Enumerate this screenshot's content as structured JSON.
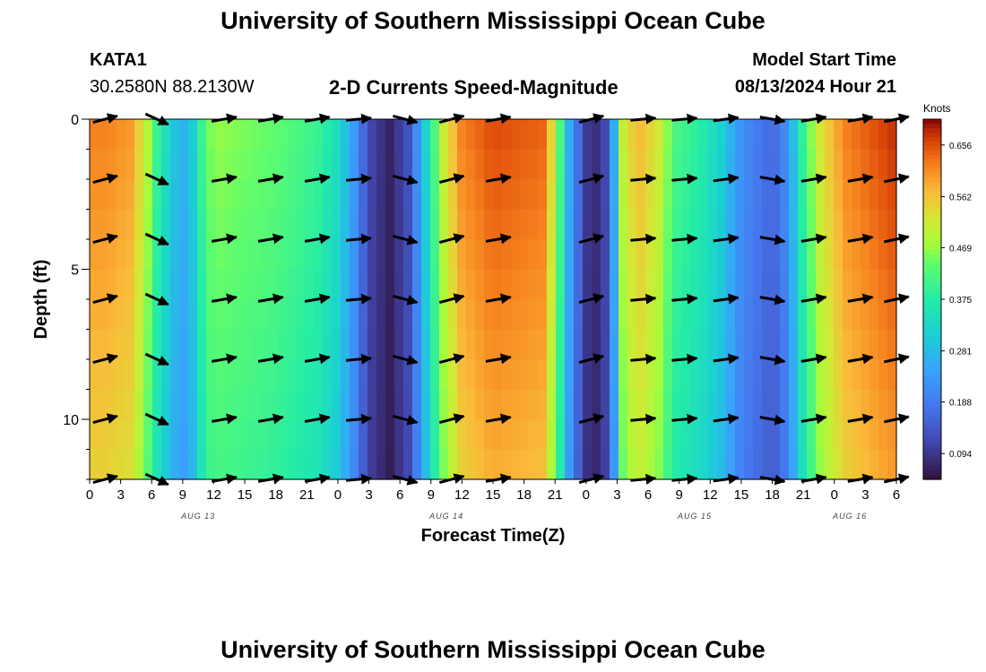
{
  "header": {
    "title": "University of Southern Mississippi Ocean Cube",
    "station_id": "KATA1",
    "coords": "30.2580N  88.2130W",
    "plot_title": "2-D Currents Speed-Magnitude",
    "model_start_label": "Model Start Time",
    "model_start_value": "08/13/2024 Hour 21"
  },
  "footer": {
    "title": "University of Southern Mississippi Ocean Cube"
  },
  "chart_data": {
    "type": "heatmap",
    "title": "2-D Currents Speed-Magnitude",
    "xlabel": "Forecast Time(Z)",
    "ylabel": "Depth (ft)",
    "ylim": [
      0,
      12
    ],
    "x_hours": [
      0,
      78
    ],
    "x_tick_labels": [
      "0",
      "3",
      "6",
      "9",
      "12",
      "15",
      "18",
      "21",
      "0",
      "3",
      "6",
      "9",
      "12",
      "15",
      "18",
      "21",
      "0",
      "3",
      "6",
      "9",
      "12",
      "15",
      "18",
      "21",
      "0",
      "3",
      "6"
    ],
    "day_labels": [
      {
        "label": "AUG 13",
        "hour": 10.5
      },
      {
        "label": "AUG 14",
        "hour": 34.5
      },
      {
        "label": "AUG 15",
        "hour": 58.5
      },
      {
        "label": "AUG 16",
        "hour": 73.5
      }
    ],
    "y_tick_labels": [
      {
        "label": "0",
        "depth": 0
      },
      {
        "label": "5",
        "depth": 5
      },
      {
        "label": "10",
        "depth": 10
      }
    ],
    "colorbar": {
      "unit": "Knots",
      "min": 0.047,
      "max": 0.703,
      "ticks": [
        "0.656",
        "0.562",
        "0.469",
        "0.375",
        "0.281",
        "0.188",
        "0.094"
      ]
    },
    "speed_profile_by_hour": [
      {
        "h": 0,
        "v": 0.62
      },
      {
        "h": 1.5,
        "v": 0.62
      },
      {
        "h": 4,
        "v": 0.6
      },
      {
        "h": 5.5,
        "v": 0.5
      },
      {
        "h": 6.5,
        "v": 0.4
      },
      {
        "h": 8,
        "v": 0.3
      },
      {
        "h": 9.5,
        "v": 0.26
      },
      {
        "h": 11,
        "v": 0.42
      },
      {
        "h": 12,
        "v": 0.47
      },
      {
        "h": 18,
        "v": 0.44
      },
      {
        "h": 22,
        "v": 0.4
      },
      {
        "h": 24,
        "v": 0.34
      },
      {
        "h": 25.5,
        "v": 0.24
      },
      {
        "h": 27,
        "v": 0.12
      },
      {
        "h": 29,
        "v": 0.07
      },
      {
        "h": 31,
        "v": 0.14
      },
      {
        "h": 32.5,
        "v": 0.32
      },
      {
        "h": 34,
        "v": 0.5
      },
      {
        "h": 36,
        "v": 0.62
      },
      {
        "h": 39,
        "v": 0.66
      },
      {
        "h": 44,
        "v": 0.64
      },
      {
        "h": 45.5,
        "v": 0.42
      },
      {
        "h": 46.5,
        "v": 0.24
      },
      {
        "h": 48,
        "v": 0.1
      },
      {
        "h": 49.5,
        "v": 0.08
      },
      {
        "h": 50.5,
        "v": 0.2
      },
      {
        "h": 51.5,
        "v": 0.5
      },
      {
        "h": 53,
        "v": 0.58
      },
      {
        "h": 55,
        "v": 0.52
      },
      {
        "h": 56.5,
        "v": 0.42
      },
      {
        "h": 59,
        "v": 0.38
      },
      {
        "h": 61,
        "v": 0.32
      },
      {
        "h": 63,
        "v": 0.22
      },
      {
        "h": 66,
        "v": 0.16
      },
      {
        "h": 67.5,
        "v": 0.22
      },
      {
        "h": 69,
        "v": 0.4
      },
      {
        "h": 70.5,
        "v": 0.52
      },
      {
        "h": 73,
        "v": 0.62
      },
      {
        "h": 78,
        "v": 0.68
      }
    ],
    "vector_hours": [
      1.5,
      6.5,
      13,
      17.5,
      22,
      26,
      30.5,
      35,
      39.5,
      48.5,
      53.5,
      57.5,
      61.5,
      66,
      70,
      74.5,
      78
    ],
    "vector_depths": [
      0,
      2,
      4,
      6,
      8,
      10,
      12
    ],
    "vector_angles_deg": [
      -15,
      25,
      -10,
      -10,
      -10,
      -5,
      15,
      -15,
      -10,
      -15,
      -5,
      -5,
      -8,
      10,
      -10,
      -10,
      -12
    ]
  }
}
